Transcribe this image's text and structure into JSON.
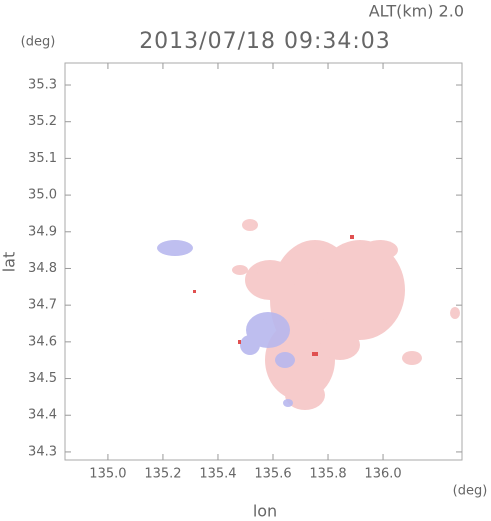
{
  "chart_data": {
    "type": "map",
    "title": "2013/07/18 09:34:03",
    "annotation": "ALT(km) 2.0",
    "x_label": "lon",
    "y_label": "lat",
    "x_unit": "(deg)",
    "y_unit": "(deg)",
    "xlim": [
      134.844,
      136.287
    ],
    "ylim": [
      34.278,
      35.36
    ],
    "xticks": [
      {
        "value": 135.0,
        "label": "135.0"
      },
      135.2,
      135.4,
      135.6,
      135.8,
      {
        "value": 136.0,
        "label": "136.0"
      }
    ],
    "yticks": [
      34.3,
      34.4,
      34.5,
      34.6,
      34.7,
      34.8,
      34.9,
      {
        "value": 35.0,
        "label": "35.0"
      },
      35.1,
      35.2,
      35.3
    ]
  }
}
